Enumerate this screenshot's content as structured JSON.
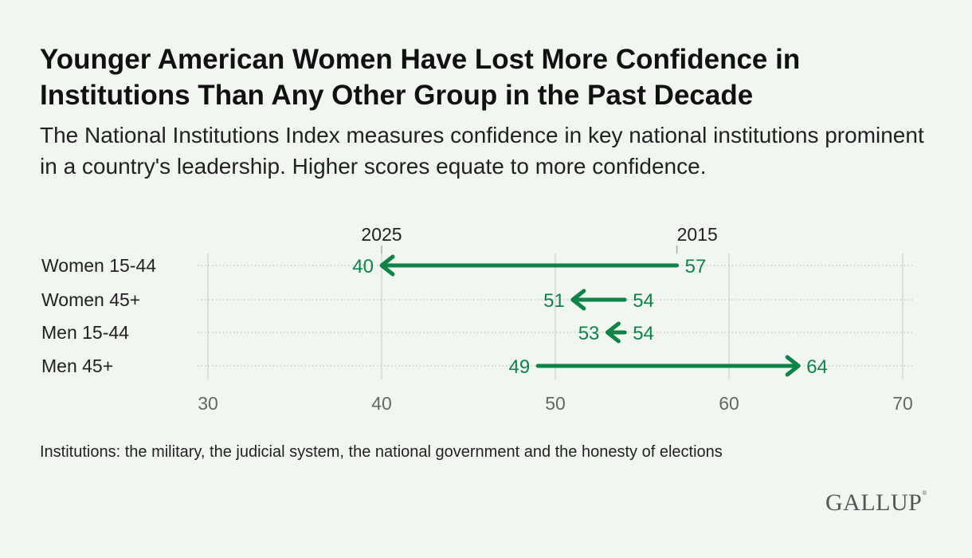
{
  "title": "Younger American Women Have Lost More Confidence in Institutions Than Any Other Group in the Past Decade",
  "subtitle": "The National Institutions Index measures confidence in key national institutions prominent in a country's leadership. Higher scores equate to more confidence.",
  "footnote": "Institutions: the military, the judicial system, the national government and the honesty of elections",
  "logo": "GALLUP",
  "chart_data": {
    "type": "dumbbell-arrow",
    "xlim": [
      30,
      70
    ],
    "xticks": [
      "30",
      "40",
      "50",
      "60",
      "70"
    ],
    "grid": true,
    "color": "#0f8448",
    "year_labels": {
      "start": "2015",
      "end": "2025"
    },
    "categories": [
      "Women 15-44",
      "Women 45+",
      "Men 15-44",
      "Men 45+"
    ],
    "series": [
      {
        "name": "2015",
        "values": [
          57,
          54,
          54,
          49
        ]
      },
      {
        "name": "2025",
        "values": [
          40,
          51,
          53,
          64
        ]
      }
    ]
  }
}
